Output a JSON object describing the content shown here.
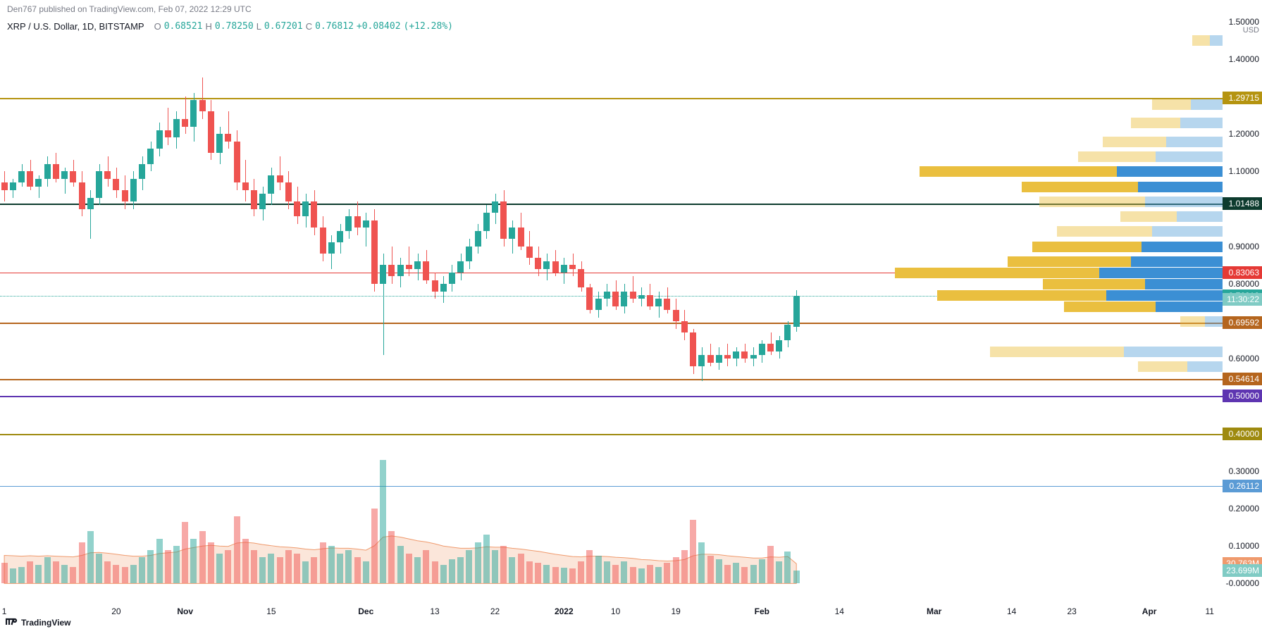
{
  "header_text": "Den767 published on TradingView.com, Feb 07, 2022 12:29 UTC",
  "symbol": "XRP / U.S. Dollar, 1D, BITSTAMP",
  "ohlc": {
    "O_label": "O",
    "O": "0.68521",
    "O_color": "#26a69a",
    "H_label": "H",
    "H": "0.78250",
    "H_color": "#26a69a",
    "L_label": "L",
    "L": "0.67201",
    "L_color": "#26a69a",
    "C_label": "C",
    "C": "0.76812",
    "C_color": "#26a69a",
    "change": "+0.08402",
    "change_color": "#26a69a",
    "pct": "(+12.28%)",
    "pct_color": "#26a69a"
  },
  "footer": "TradingView",
  "y_axis": {
    "currency_label": "USD",
    "min": -0.05,
    "max": 1.52,
    "ticks": [
      "1.40000",
      "1.20000",
      "1.10000",
      "0.90000",
      "0.80000",
      "0.60000",
      "0.30000",
      "0.20000",
      "0.10000",
      "-0.00000"
    ],
    "tick_vals": [
      1.4,
      1.2,
      1.1,
      0.9,
      0.8,
      0.6,
      0.3,
      0.2,
      0.1,
      0.0
    ]
  },
  "x_axis": {
    "ticks": [
      {
        "label": "1",
        "bold": false,
        "i": 0
      },
      {
        "label": "20",
        "bold": false,
        "i": 13
      },
      {
        "label": "Nov",
        "bold": true,
        "i": 21
      },
      {
        "label": "15",
        "bold": false,
        "i": 31
      },
      {
        "label": "Dec",
        "bold": true,
        "i": 42
      },
      {
        "label": "13",
        "bold": false,
        "i": 50
      },
      {
        "label": "22",
        "bold": false,
        "i": 57
      },
      {
        "label": "2022",
        "bold": true,
        "i": 65
      },
      {
        "label": "10",
        "bold": false,
        "i": 71
      },
      {
        "label": "19",
        "bold": false,
        "i": 78
      },
      {
        "label": "Feb",
        "bold": true,
        "i": 88
      },
      {
        "label": "14",
        "bold": false,
        "i": 97
      },
      {
        "label": "Mar",
        "bold": true,
        "i": 108
      },
      {
        "label": "14",
        "bold": false,
        "i": 117
      },
      {
        "label": "23",
        "bold": false,
        "i": 124
      },
      {
        "label": "Apr",
        "bold": true,
        "i": 133
      },
      {
        "label": "11",
        "bold": false,
        "i": 140
      }
    ]
  },
  "price_tags": [
    {
      "value": 1.5,
      "label": "1.50000",
      "color": "transparent",
      "text_color": "#131722"
    },
    {
      "value": 1.29715,
      "label": "1.29715",
      "color": "#b59410"
    },
    {
      "value": 1.01488,
      "label": "1.01488",
      "color": "#0d3b2e"
    },
    {
      "value": 0.83063,
      "label": "0.83063",
      "color": "#e53935"
    },
    {
      "value": 0.76812,
      "label": "0.76812",
      "color": "#26a69a"
    },
    {
      "value": 0.758,
      "label": "11:30:22",
      "color": "#80cbc4"
    },
    {
      "value": 0.69592,
      "label": "0.69592",
      "color": "#b5651d"
    },
    {
      "value": 0.54614,
      "label": "0.54614",
      "color": "#b5651d"
    },
    {
      "value": 0.5,
      "label": "0.50000",
      "color": "#5e35b1"
    },
    {
      "value": 0.4,
      "label": "0.40000",
      "color": "#9e8a0f"
    },
    {
      "value": 0.26112,
      "label": "0.26112",
      "color": "#5b9bd5"
    },
    {
      "value": 0.053,
      "label": "30.763M",
      "color": "#ef9a6d"
    },
    {
      "value": 0.035,
      "label": "23.699M",
      "color": "#80cbc4"
    }
  ],
  "hlines": [
    {
      "value": 1.29715,
      "color": "#b59410",
      "width": 2
    },
    {
      "value": 1.01488,
      "color": "#0d3b2e",
      "width": 2
    },
    {
      "value": 0.83063,
      "color": "#e53935",
      "width": 1
    },
    {
      "value": 0.76812,
      "color": "#26a69a",
      "width": 1,
      "dotted": true
    },
    {
      "value": 0.69592,
      "color": "#b5651d",
      "width": 2
    },
    {
      "value": 0.54614,
      "color": "#b5651d",
      "width": 2
    },
    {
      "value": 0.5,
      "color": "#5e35b1",
      "width": 2
    },
    {
      "value": 0.4,
      "color": "#9e8a0f",
      "width": 2
    },
    {
      "value": 0.26112,
      "color": "#5b9bd5",
      "width": 1
    }
  ],
  "chart": {
    "up_color": "#26a69a",
    "down_color": "#ef5350",
    "n_slots": 142,
    "candle_width": 9
  },
  "candles": [
    {
      "i": 0,
      "o": 1.07,
      "h": 1.1,
      "l": 1.02,
      "c": 1.05,
      "up": false
    },
    {
      "i": 1,
      "o": 1.05,
      "h": 1.08,
      "l": 1.03,
      "c": 1.07,
      "up": true
    },
    {
      "i": 2,
      "o": 1.07,
      "h": 1.12,
      "l": 1.06,
      "c": 1.1,
      "up": true
    },
    {
      "i": 3,
      "o": 1.1,
      "h": 1.13,
      "l": 1.05,
      "c": 1.06,
      "up": false
    },
    {
      "i": 4,
      "o": 1.06,
      "h": 1.09,
      "l": 1.03,
      "c": 1.08,
      "up": true
    },
    {
      "i": 5,
      "o": 1.08,
      "h": 1.14,
      "l": 1.06,
      "c": 1.12,
      "up": true
    },
    {
      "i": 6,
      "o": 1.12,
      "h": 1.15,
      "l": 1.07,
      "c": 1.08,
      "up": false
    },
    {
      "i": 7,
      "o": 1.08,
      "h": 1.11,
      "l": 1.04,
      "c": 1.1,
      "up": true
    },
    {
      "i": 8,
      "o": 1.1,
      "h": 1.13,
      "l": 1.06,
      "c": 1.07,
      "up": false
    },
    {
      "i": 9,
      "o": 1.07,
      "h": 1.1,
      "l": 0.98,
      "c": 1.0,
      "up": false
    },
    {
      "i": 10,
      "o": 1.0,
      "h": 1.05,
      "l": 0.92,
      "c": 1.03,
      "up": true
    },
    {
      "i": 11,
      "o": 1.03,
      "h": 1.12,
      "l": 1.01,
      "c": 1.1,
      "up": true
    },
    {
      "i": 12,
      "o": 1.1,
      "h": 1.14,
      "l": 1.06,
      "c": 1.08,
      "up": false
    },
    {
      "i": 13,
      "o": 1.08,
      "h": 1.11,
      "l": 1.03,
      "c": 1.05,
      "up": false
    },
    {
      "i": 14,
      "o": 1.05,
      "h": 1.09,
      "l": 1.0,
      "c": 1.02,
      "up": false
    },
    {
      "i": 15,
      "o": 1.02,
      "h": 1.1,
      "l": 1.0,
      "c": 1.08,
      "up": true
    },
    {
      "i": 16,
      "o": 1.08,
      "h": 1.14,
      "l": 1.05,
      "c": 1.12,
      "up": true
    },
    {
      "i": 17,
      "o": 1.12,
      "h": 1.18,
      "l": 1.1,
      "c": 1.16,
      "up": true
    },
    {
      "i": 18,
      "o": 1.16,
      "h": 1.23,
      "l": 1.14,
      "c": 1.21,
      "up": true
    },
    {
      "i": 19,
      "o": 1.21,
      "h": 1.27,
      "l": 1.17,
      "c": 1.19,
      "up": false
    },
    {
      "i": 20,
      "o": 1.19,
      "h": 1.26,
      "l": 1.16,
      "c": 1.24,
      "up": true
    },
    {
      "i": 21,
      "o": 1.24,
      "h": 1.3,
      "l": 1.2,
      "c": 1.22,
      "up": false
    },
    {
      "i": 22,
      "o": 1.22,
      "h": 1.31,
      "l": 1.18,
      "c": 1.29,
      "up": true
    },
    {
      "i": 23,
      "o": 1.29,
      "h": 1.35,
      "l": 1.24,
      "c": 1.26,
      "up": false
    },
    {
      "i": 24,
      "o": 1.26,
      "h": 1.29,
      "l": 1.13,
      "c": 1.15,
      "up": false
    },
    {
      "i": 25,
      "o": 1.15,
      "h": 1.22,
      "l": 1.12,
      "c": 1.2,
      "up": true
    },
    {
      "i": 26,
      "o": 1.2,
      "h": 1.26,
      "l": 1.16,
      "c": 1.18,
      "up": false
    },
    {
      "i": 27,
      "o": 1.18,
      "h": 1.21,
      "l": 1.05,
      "c": 1.07,
      "up": false
    },
    {
      "i": 28,
      "o": 1.07,
      "h": 1.13,
      "l": 1.02,
      "c": 1.05,
      "up": false
    },
    {
      "i": 29,
      "o": 1.05,
      "h": 1.08,
      "l": 0.98,
      "c": 1.0,
      "up": false
    },
    {
      "i": 30,
      "o": 1.0,
      "h": 1.06,
      "l": 0.97,
      "c": 1.04,
      "up": true
    },
    {
      "i": 31,
      "o": 1.04,
      "h": 1.11,
      "l": 1.01,
      "c": 1.09,
      "up": true
    },
    {
      "i": 32,
      "o": 1.09,
      "h": 1.14,
      "l": 1.05,
      "c": 1.07,
      "up": false
    },
    {
      "i": 33,
      "o": 1.07,
      "h": 1.1,
      "l": 1.0,
      "c": 1.02,
      "up": false
    },
    {
      "i": 34,
      "o": 1.02,
      "h": 1.06,
      "l": 0.96,
      "c": 0.98,
      "up": false
    },
    {
      "i": 35,
      "o": 0.98,
      "h": 1.04,
      "l": 0.95,
      "c": 1.02,
      "up": true
    },
    {
      "i": 36,
      "o": 1.02,
      "h": 1.05,
      "l": 0.93,
      "c": 0.95,
      "up": false
    },
    {
      "i": 37,
      "o": 0.95,
      "h": 0.98,
      "l": 0.86,
      "c": 0.88,
      "up": false
    },
    {
      "i": 38,
      "o": 0.88,
      "h": 0.93,
      "l": 0.84,
      "c": 0.91,
      "up": true
    },
    {
      "i": 39,
      "o": 0.91,
      "h": 0.96,
      "l": 0.88,
      "c": 0.94,
      "up": true
    },
    {
      "i": 40,
      "o": 0.94,
      "h": 1.0,
      "l": 0.92,
      "c": 0.98,
      "up": true
    },
    {
      "i": 41,
      "o": 0.98,
      "h": 1.02,
      "l": 0.93,
      "c": 0.95,
      "up": false
    },
    {
      "i": 42,
      "o": 0.95,
      "h": 0.99,
      "l": 0.9,
      "c": 0.97,
      "up": true
    },
    {
      "i": 43,
      "o": 0.97,
      "h": 1.0,
      "l": 0.78,
      "c": 0.8,
      "up": false
    },
    {
      "i": 44,
      "o": 0.8,
      "h": 0.88,
      "l": 0.61,
      "c": 0.85,
      "up": true
    },
    {
      "i": 45,
      "o": 0.85,
      "h": 0.9,
      "l": 0.8,
      "c": 0.82,
      "up": false
    },
    {
      "i": 46,
      "o": 0.82,
      "h": 0.87,
      "l": 0.79,
      "c": 0.85,
      "up": true
    },
    {
      "i": 47,
      "o": 0.85,
      "h": 0.9,
      "l": 0.82,
      "c": 0.84,
      "up": false
    },
    {
      "i": 48,
      "o": 0.84,
      "h": 0.88,
      "l": 0.81,
      "c": 0.86,
      "up": true
    },
    {
      "i": 49,
      "o": 0.86,
      "h": 0.89,
      "l": 0.8,
      "c": 0.81,
      "up": false
    },
    {
      "i": 50,
      "o": 0.81,
      "h": 0.83,
      "l": 0.76,
      "c": 0.78,
      "up": false
    },
    {
      "i": 51,
      "o": 0.78,
      "h": 0.82,
      "l": 0.75,
      "c": 0.8,
      "up": true
    },
    {
      "i": 52,
      "o": 0.8,
      "h": 0.85,
      "l": 0.78,
      "c": 0.83,
      "up": true
    },
    {
      "i": 53,
      "o": 0.83,
      "h": 0.88,
      "l": 0.81,
      "c": 0.86,
      "up": true
    },
    {
      "i": 54,
      "o": 0.86,
      "h": 0.92,
      "l": 0.84,
      "c": 0.9,
      "up": true
    },
    {
      "i": 55,
      "o": 0.9,
      "h": 0.96,
      "l": 0.88,
      "c": 0.94,
      "up": true
    },
    {
      "i": 56,
      "o": 0.94,
      "h": 1.01,
      "l": 0.92,
      "c": 0.99,
      "up": true
    },
    {
      "i": 57,
      "o": 0.99,
      "h": 1.04,
      "l": 0.96,
      "c": 1.02,
      "up": true
    },
    {
      "i": 58,
      "o": 1.02,
      "h": 1.05,
      "l": 0.9,
      "c": 0.92,
      "up": false
    },
    {
      "i": 59,
      "o": 0.92,
      "h": 0.97,
      "l": 0.88,
      "c": 0.95,
      "up": true
    },
    {
      "i": 60,
      "o": 0.95,
      "h": 0.99,
      "l": 0.89,
      "c": 0.9,
      "up": false
    },
    {
      "i": 61,
      "o": 0.9,
      "h": 0.94,
      "l": 0.85,
      "c": 0.87,
      "up": false
    },
    {
      "i": 62,
      "o": 0.87,
      "h": 0.9,
      "l": 0.82,
      "c": 0.84,
      "up": false
    },
    {
      "i": 63,
      "o": 0.84,
      "h": 0.88,
      "l": 0.81,
      "c": 0.86,
      "up": true
    },
    {
      "i": 64,
      "o": 0.86,
      "h": 0.89,
      "l": 0.82,
      "c": 0.83,
      "up": false
    },
    {
      "i": 65,
      "o": 0.83,
      "h": 0.87,
      "l": 0.8,
      "c": 0.85,
      "up": true
    },
    {
      "i": 66,
      "o": 0.85,
      "h": 0.88,
      "l": 0.82,
      "c": 0.84,
      "up": false
    },
    {
      "i": 67,
      "o": 0.84,
      "h": 0.86,
      "l": 0.78,
      "c": 0.79,
      "up": false
    },
    {
      "i": 68,
      "o": 0.79,
      "h": 0.8,
      "l": 0.72,
      "c": 0.73,
      "up": false
    },
    {
      "i": 69,
      "o": 0.73,
      "h": 0.78,
      "l": 0.71,
      "c": 0.76,
      "up": true
    },
    {
      "i": 70,
      "o": 0.76,
      "h": 0.8,
      "l": 0.74,
      "c": 0.78,
      "up": true
    },
    {
      "i": 71,
      "o": 0.78,
      "h": 0.81,
      "l": 0.73,
      "c": 0.74,
      "up": false
    },
    {
      "i": 72,
      "o": 0.74,
      "h": 0.8,
      "l": 0.72,
      "c": 0.78,
      "up": true
    },
    {
      "i": 73,
      "o": 0.78,
      "h": 0.82,
      "l": 0.75,
      "c": 0.76,
      "up": false
    },
    {
      "i": 74,
      "o": 0.76,
      "h": 0.79,
      "l": 0.74,
      "c": 0.77,
      "up": true
    },
    {
      "i": 75,
      "o": 0.77,
      "h": 0.8,
      "l": 0.73,
      "c": 0.74,
      "up": false
    },
    {
      "i": 76,
      "o": 0.74,
      "h": 0.78,
      "l": 0.71,
      "c": 0.76,
      "up": true
    },
    {
      "i": 77,
      "o": 0.76,
      "h": 0.79,
      "l": 0.72,
      "c": 0.73,
      "up": false
    },
    {
      "i": 78,
      "o": 0.73,
      "h": 0.76,
      "l": 0.68,
      "c": 0.7,
      "up": false
    },
    {
      "i": 79,
      "o": 0.7,
      "h": 0.73,
      "l": 0.65,
      "c": 0.67,
      "up": false
    },
    {
      "i": 80,
      "o": 0.67,
      "h": 0.68,
      "l": 0.56,
      "c": 0.58,
      "up": false
    },
    {
      "i": 81,
      "o": 0.58,
      "h": 0.63,
      "l": 0.54,
      "c": 0.61,
      "up": true
    },
    {
      "i": 82,
      "o": 0.61,
      "h": 0.64,
      "l": 0.58,
      "c": 0.59,
      "up": false
    },
    {
      "i": 83,
      "o": 0.59,
      "h": 0.63,
      "l": 0.57,
      "c": 0.61,
      "up": true
    },
    {
      "i": 84,
      "o": 0.61,
      "h": 0.64,
      "l": 0.58,
      "c": 0.6,
      "up": false
    },
    {
      "i": 85,
      "o": 0.6,
      "h": 0.63,
      "l": 0.58,
      "c": 0.62,
      "up": true
    },
    {
      "i": 86,
      "o": 0.62,
      "h": 0.64,
      "l": 0.59,
      "c": 0.6,
      "up": false
    },
    {
      "i": 87,
      "o": 0.6,
      "h": 0.63,
      "l": 0.58,
      "c": 0.61,
      "up": true
    },
    {
      "i": 88,
      "o": 0.61,
      "h": 0.65,
      "l": 0.59,
      "c": 0.64,
      "up": true
    },
    {
      "i": 89,
      "o": 0.64,
      "h": 0.67,
      "l": 0.61,
      "c": 0.62,
      "up": false
    },
    {
      "i": 90,
      "o": 0.62,
      "h": 0.66,
      "l": 0.6,
      "c": 0.65,
      "up": true
    },
    {
      "i": 91,
      "o": 0.65,
      "h": 0.7,
      "l": 0.63,
      "c": 0.69,
      "up": true
    },
    {
      "i": 92,
      "o": 0.685,
      "h": 0.783,
      "l": 0.672,
      "c": 0.768,
      "up": true
    }
  ],
  "volume": {
    "max": 0.34,
    "ma_color": "#ef9a6d",
    "ma_fill": "rgba(239,154,109,0.25)",
    "up_color": "rgba(38,166,154,0.5)",
    "down_col": "rgba(239,83,80,0.5)",
    "bars": [
      0.055,
      0.04,
      0.045,
      0.06,
      0.05,
      0.07,
      0.06,
      0.05,
      0.045,
      0.11,
      0.14,
      0.08,
      0.06,
      0.05,
      0.045,
      0.05,
      0.07,
      0.09,
      0.12,
      0.09,
      0.1,
      0.165,
      0.12,
      0.14,
      0.11,
      0.08,
      0.09,
      0.18,
      0.12,
      0.09,
      0.07,
      0.08,
      0.07,
      0.09,
      0.08,
      0.06,
      0.07,
      0.11,
      0.1,
      0.08,
      0.09,
      0.07,
      0.06,
      0.2,
      0.33,
      0.14,
      0.1,
      0.08,
      0.07,
      0.09,
      0.06,
      0.05,
      0.065,
      0.07,
      0.09,
      0.11,
      0.13,
      0.09,
      0.1,
      0.07,
      0.08,
      0.06,
      0.055,
      0.05,
      0.045,
      0.042,
      0.04,
      0.06,
      0.09,
      0.075,
      0.06,
      0.05,
      0.06,
      0.045,
      0.04,
      0.05,
      0.045,
      0.055,
      0.07,
      0.09,
      0.17,
      0.11,
      0.075,
      0.065,
      0.05,
      0.055,
      0.045,
      0.05,
      0.065,
      0.1,
      0.06,
      0.085,
      0.035
    ],
    "ma": [
      0.075,
      0.074,
      0.073,
      0.074,
      0.073,
      0.074,
      0.073,
      0.072,
      0.071,
      0.075,
      0.082,
      0.083,
      0.081,
      0.078,
      0.075,
      0.073,
      0.073,
      0.075,
      0.08,
      0.082,
      0.084,
      0.092,
      0.096,
      0.1,
      0.102,
      0.1,
      0.099,
      0.108,
      0.11,
      0.108,
      0.104,
      0.101,
      0.098,
      0.097,
      0.095,
      0.092,
      0.09,
      0.093,
      0.095,
      0.094,
      0.094,
      0.092,
      0.089,
      0.101,
      0.124,
      0.127,
      0.124,
      0.119,
      0.114,
      0.111,
      0.106,
      0.1,
      0.097,
      0.094,
      0.094,
      0.095,
      0.098,
      0.097,
      0.097,
      0.094,
      0.092,
      0.089,
      0.086,
      0.082,
      0.078,
      0.075,
      0.072,
      0.071,
      0.073,
      0.073,
      0.072,
      0.07,
      0.069,
      0.067,
      0.064,
      0.063,
      0.061,
      0.06,
      0.061,
      0.064,
      0.074,
      0.078,
      0.078,
      0.077,
      0.074,
      0.072,
      0.07,
      0.068,
      0.068,
      0.071,
      0.07,
      0.072,
      0.053
    ]
  },
  "volume_profile": {
    "buy_full": "#eabf3f",
    "buy_fade": "rgba(234,191,63,0.45)",
    "sell_full": "#3b8fd4",
    "sell_fade": "rgba(93,164,218,0.45)",
    "rows": [
      {
        "v": 1.45,
        "buy": 25,
        "sell": 18,
        "fade": true
      },
      {
        "v": 1.28,
        "buy": 55,
        "sell": 45,
        "fade": true
      },
      {
        "v": 1.23,
        "buy": 70,
        "sell": 60,
        "fade": true
      },
      {
        "v": 1.18,
        "buy": 90,
        "sell": 80,
        "fade": true
      },
      {
        "v": 1.14,
        "buy": 110,
        "sell": 95,
        "fade": true
      },
      {
        "v": 1.1,
        "buy": 280,
        "sell": 150,
        "fade": false
      },
      {
        "v": 1.06,
        "buy": 165,
        "sell": 120,
        "fade": false
      },
      {
        "v": 1.02,
        "buy": 150,
        "sell": 110,
        "fade": true
      },
      {
        "v": 0.98,
        "buy": 80,
        "sell": 65,
        "fade": true
      },
      {
        "v": 0.94,
        "buy": 135,
        "sell": 100,
        "fade": true
      },
      {
        "v": 0.9,
        "buy": 155,
        "sell": 115,
        "fade": false
      },
      {
        "v": 0.86,
        "buy": 175,
        "sell": 130,
        "fade": false
      },
      {
        "v": 0.83,
        "buy": 290,
        "sell": 175,
        "fade": false
      },
      {
        "v": 0.8,
        "buy": 145,
        "sell": 110,
        "fade": false
      },
      {
        "v": 0.77,
        "buy": 240,
        "sell": 165,
        "fade": false
      },
      {
        "v": 0.74,
        "buy": 130,
        "sell": 95,
        "fade": false
      },
      {
        "v": 0.7,
        "buy": 35,
        "sell": 25,
        "fade": true
      },
      {
        "v": 0.62,
        "buy": 190,
        "sell": 140,
        "fade": true
      },
      {
        "v": 0.58,
        "buy": 70,
        "sell": 50,
        "fade": true
      }
    ]
  }
}
